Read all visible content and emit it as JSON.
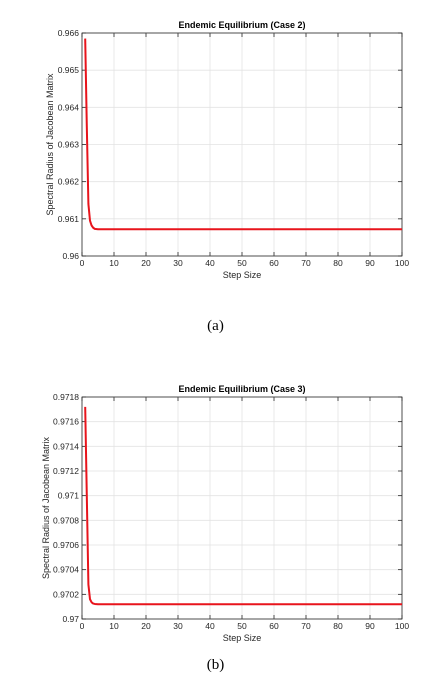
{
  "chart_data": [
    {
      "type": "line",
      "title": "Endemic Equilibrium (Case 2)",
      "xlabel": "Step Size",
      "ylabel": "Spectral Radius of Jacobean Matrix",
      "xlim": [
        0,
        100
      ],
      "ylim": [
        0.96,
        0.966
      ],
      "xticks": [
        "0",
        "10",
        "20",
        "30",
        "40",
        "50",
        "60",
        "70",
        "80",
        "90",
        "100"
      ],
      "yticks": [
        "0.96",
        "0.961",
        "0.962",
        "0.963",
        "0.964",
        "0.965",
        "0.966"
      ],
      "grid": true,
      "series": [
        {
          "color": "#e8141c",
          "x": [
            1,
            1.5,
            2,
            2.5,
            3,
            3.5,
            4,
            5,
            6,
            8,
            10,
            20,
            40,
            60,
            80,
            100
          ],
          "y": [
            0.96585,
            0.9635,
            0.9614,
            0.96095,
            0.96082,
            0.96076,
            0.96073,
            0.96072,
            0.96072,
            0.96072,
            0.96072,
            0.96072,
            0.96072,
            0.96072,
            0.96072,
            0.96072
          ]
        }
      ],
      "caption": "(a)"
    },
    {
      "type": "line",
      "title": "Endemic Equilibrium (Case 3)",
      "xlabel": "Step Size",
      "ylabel": "Spectral Radius of Jacobean Matrix",
      "xlim": [
        0,
        100
      ],
      "ylim": [
        0.97,
        0.9718
      ],
      "xticks": [
        "0",
        "10",
        "20",
        "30",
        "40",
        "50",
        "60",
        "70",
        "80",
        "90",
        "100"
      ],
      "yticks": [
        "0.97",
        "0.9702",
        "0.9704",
        "0.9706",
        "0.9708",
        "0.971",
        "0.9712",
        "0.9714",
        "0.9716",
        "0.9718"
      ],
      "grid": true,
      "series": [
        {
          "color": "#e8141c",
          "x": [
            1,
            1.5,
            2,
            2.5,
            3,
            3.5,
            4,
            5,
            6,
            8,
            10,
            20,
            40,
            60,
            80,
            100
          ],
          "y": [
            0.97172,
            0.971,
            0.97028,
            0.97016,
            0.970135,
            0.970125,
            0.970122,
            0.97012,
            0.97012,
            0.97012,
            0.97012,
            0.97012,
            0.97012,
            0.97012,
            0.97012,
            0.97012
          ]
        }
      ],
      "caption": "(b)"
    }
  ]
}
